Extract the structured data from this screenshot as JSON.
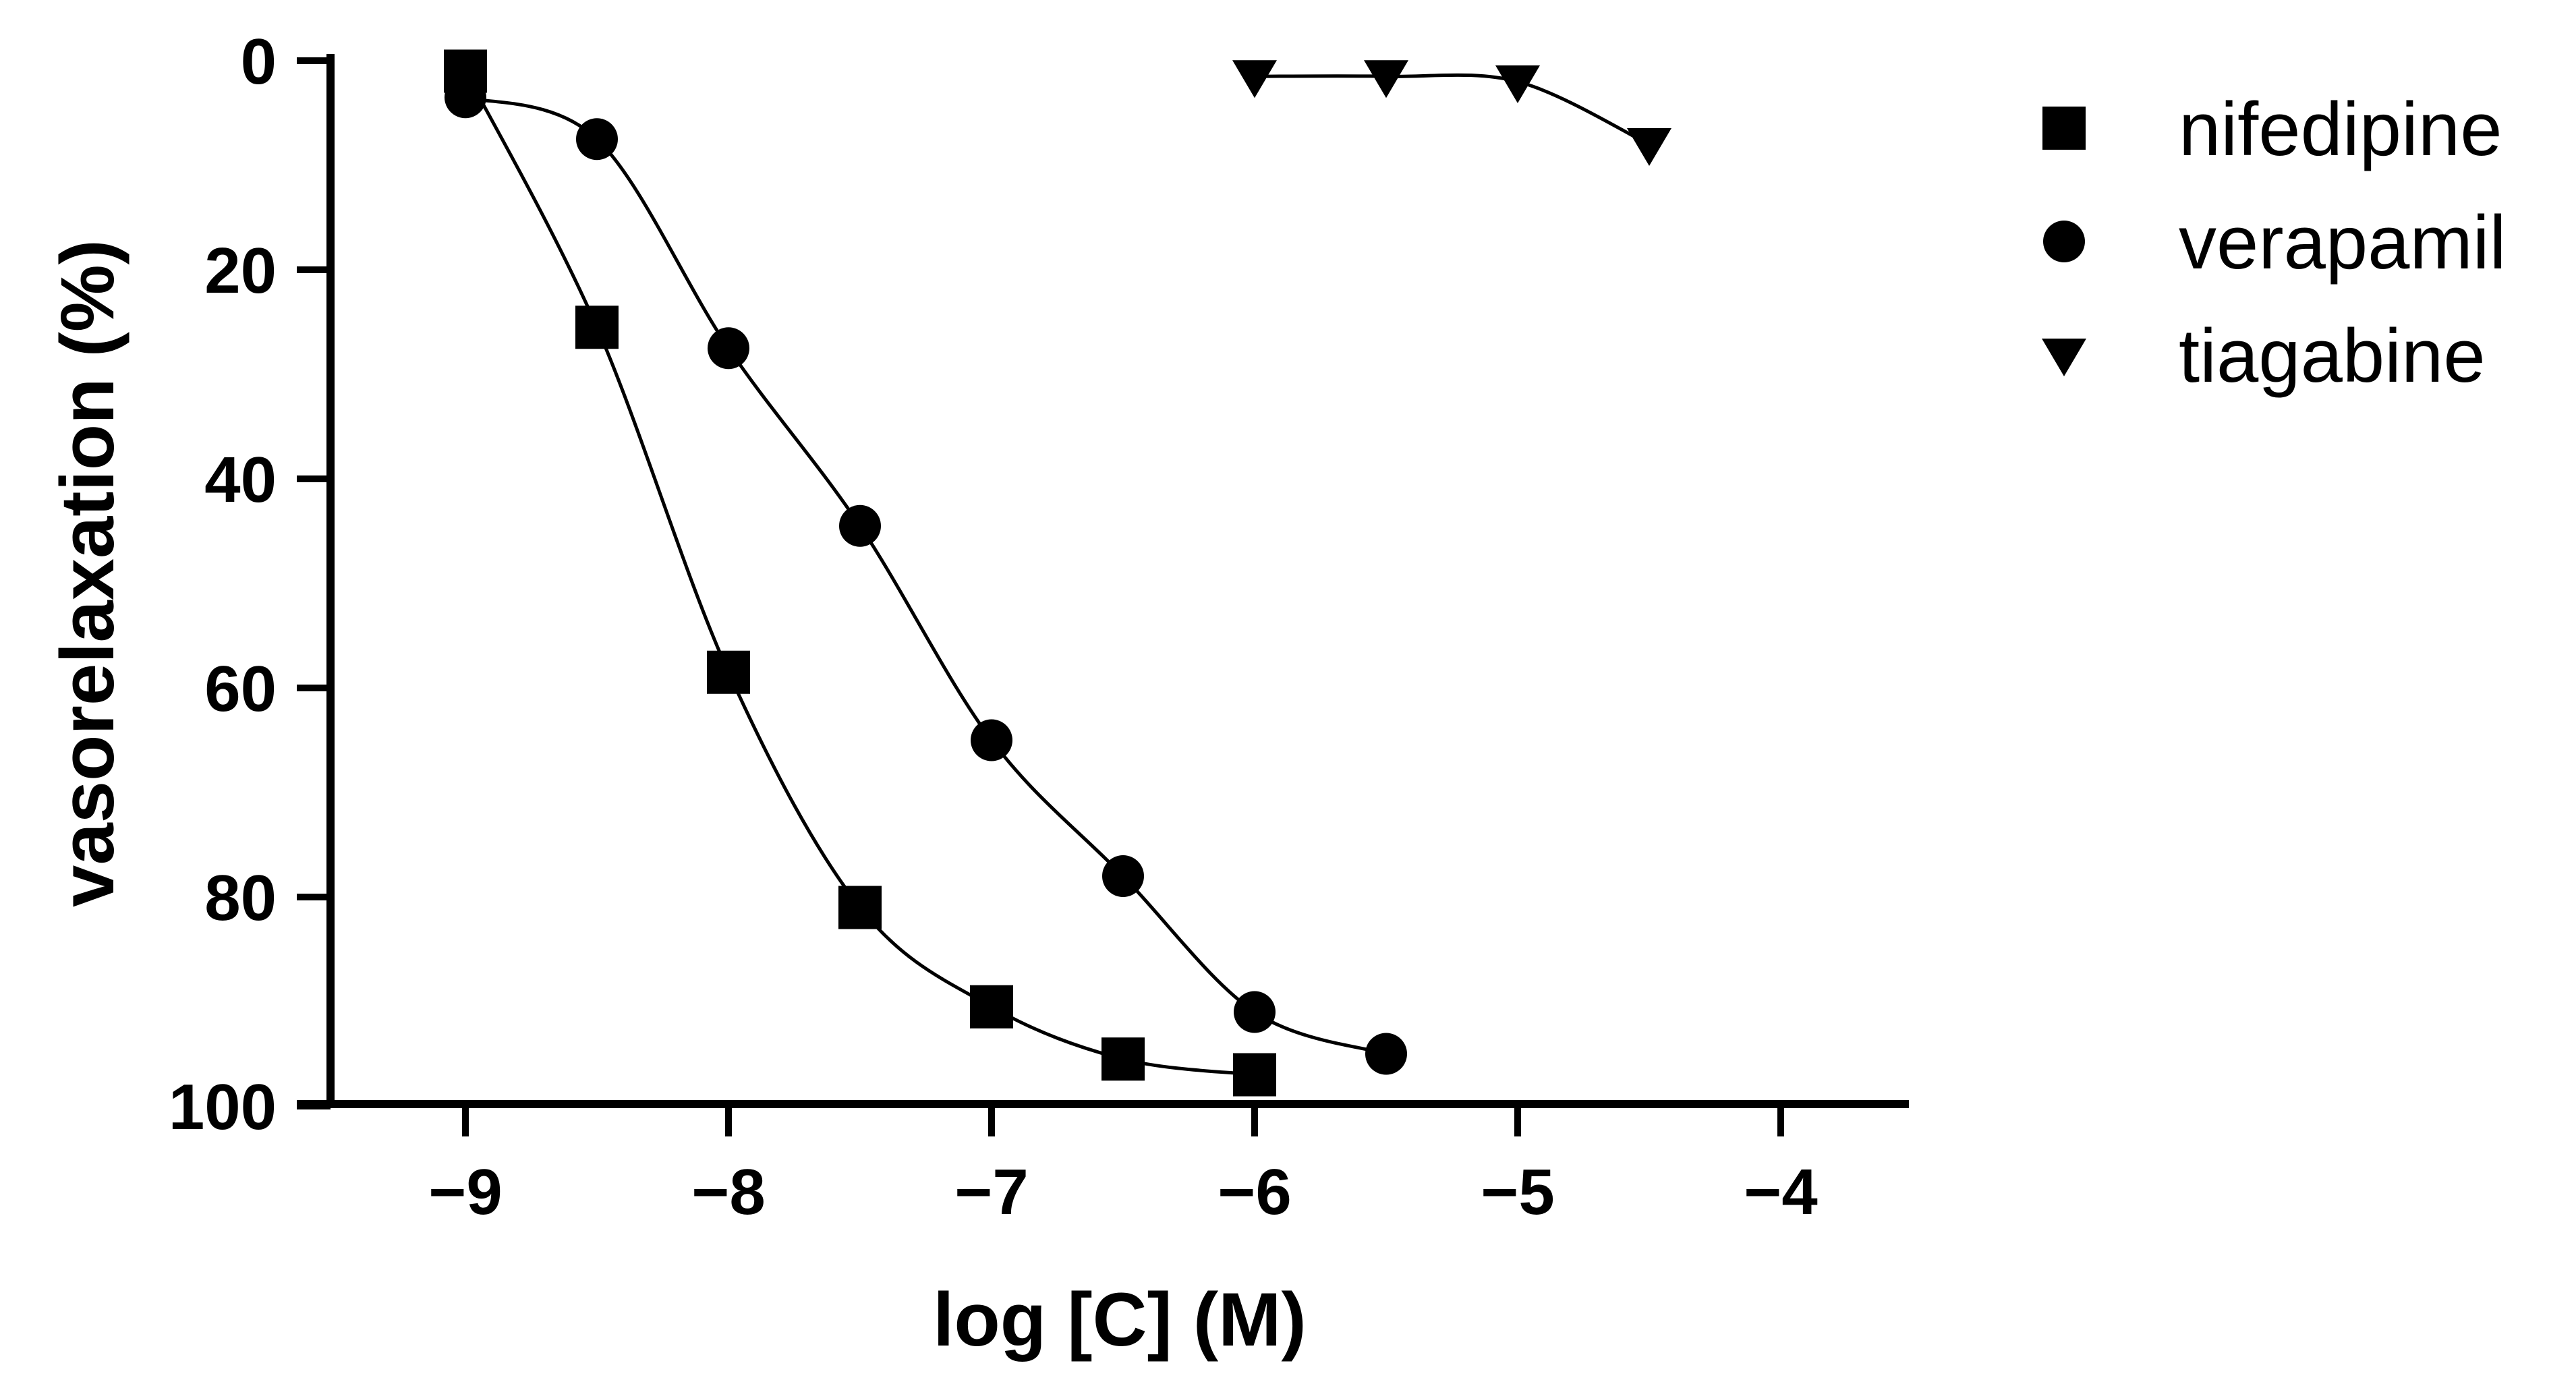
{
  "chart_data": {
    "type": "scatter",
    "title": "",
    "xlabel": "log [C] (M)",
    "ylabel": "vasorelaxation (%)",
    "xlim": [
      -9.6,
      -3.5
    ],
    "ylim": [
      0,
      100
    ],
    "y_inverted": true,
    "x_ticks": [
      -9,
      -8,
      -7,
      -6,
      -5,
      -4
    ],
    "x_tick_labels": [
      "−9",
      "−8",
      "−7",
      "−6",
      "−5",
      "−4"
    ],
    "y_ticks": [
      0,
      20,
      40,
      60,
      80,
      100
    ],
    "y_tick_labels": [
      "0",
      "20",
      "40",
      "60",
      "80",
      "100"
    ],
    "grid": false,
    "legend_position": "top-right",
    "series": [
      {
        "name": "nifedipine",
        "marker": "square",
        "x": [
          -9,
          -8.5,
          -8,
          -7.5,
          -7,
          -6.5,
          -6
        ],
        "values": [
          1,
          25.5,
          58.5,
          81,
          90.5,
          95.5,
          97
        ]
      },
      {
        "name": "verapamil",
        "marker": "circle",
        "x": [
          -9,
          -8.5,
          -8,
          -7.5,
          -7,
          -6.5,
          -6,
          -5.5
        ],
        "values": [
          3.5,
          7.5,
          27.5,
          44.5,
          65,
          78,
          91,
          95
        ]
      },
      {
        "name": "tiagabine",
        "marker": "triangle-down",
        "x": [
          -6,
          -5.5,
          -5,
          -4.5
        ],
        "values": [
          1.5,
          1.5,
          2,
          8
        ]
      }
    ]
  }
}
